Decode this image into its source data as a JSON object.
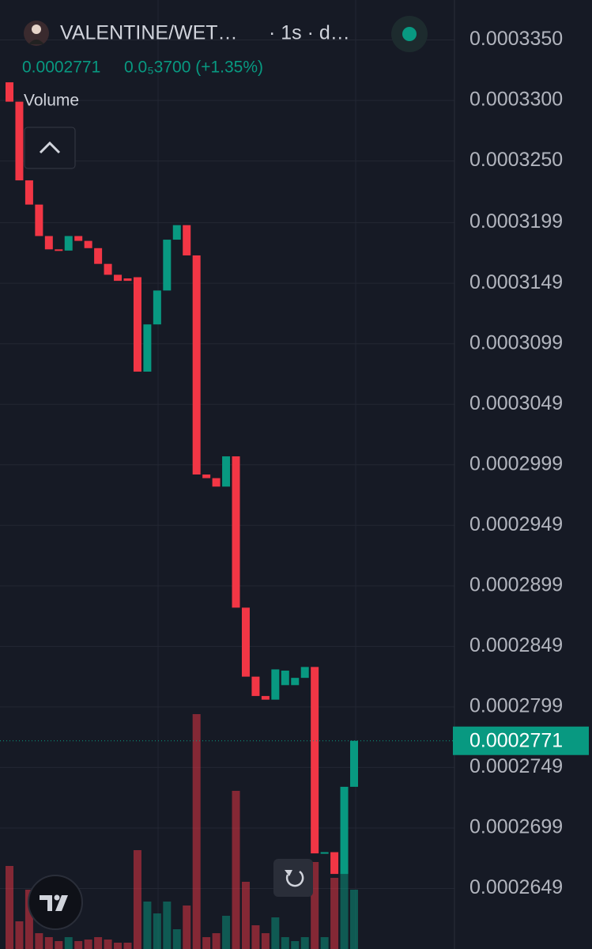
{
  "chart_data": {
    "type": "candlestick",
    "title": "VALENTINE/WET…",
    "subtitle": "· 1s · d…",
    "price": 0.0002771,
    "change": "0.0₅3700 (+1.35%)",
    "volume_label": "Volume",
    "up_color": "#089981",
    "down_color": "#f23645",
    "grid": true,
    "ylim": [
      0.0002599,
      0.0003383
    ],
    "yticks": [
      {
        "value": 0.000335,
        "label": "0.0003350"
      },
      {
        "value": 0.00033,
        "label": "0.0003300"
      },
      {
        "value": 0.000325,
        "label": "0.0003250"
      },
      0.0003199,
      0.0003149,
      0.0003099,
      0.0003049,
      0.0002999,
      0.0002949,
      0.0002899,
      0.0002849,
      0.0002799,
      0.0002749,
      0.0002699,
      0.0002649
    ],
    "open": [
      0.0003315,
      0.0003299,
      0.0003234,
      0.0003214,
      0.0003188,
      0.0003177,
      0.0003176,
      0.0003188,
      0.0003184,
      0.0003178,
      0.0003165,
      0.0003156,
      0.0003153,
      0.0003154,
      0.0003076,
      0.0003115,
      0.0003143,
      0.0003185,
      0.0003197,
      0.0003172,
      0.0002991,
      0.0002988,
      0.0002981,
      0.0003006,
      0.0002881,
      0.0002824,
      0.0002808,
      0.0002805,
      0.0002817,
      0.0002817,
      0.0002823,
      0.0002832,
      0.0002678,
      0.0002679,
      0.0002661,
      0.0002733
    ],
    "close": [
      0.0003299,
      0.0003234,
      0.0003214,
      0.0003188,
      0.0003177,
      0.0003176,
      0.0003188,
      0.0003184,
      0.0003178,
      0.0003165,
      0.0003156,
      0.0003151,
      0.0003151,
      0.0003076,
      0.0003115,
      0.0003143,
      0.0003185,
      0.0003197,
      0.0003172,
      0.0002991,
      0.0002988,
      0.0002981,
      0.0003006,
      0.0002881,
      0.0002824,
      0.0002808,
      0.0002805,
      0.000283,
      0.0002829,
      0.0002823,
      0.0002832,
      0.0002678,
      0.0002679,
      0.0002661,
      0.0002733,
      0.0002771
    ],
    "volume": [
      105,
      35,
      75,
      20,
      15,
      10,
      15,
      10,
      12,
      15,
      12,
      8,
      8,
      125,
      60,
      45,
      60,
      25,
      55,
      297,
      15,
      20,
      42,
      200,
      85,
      30,
      20,
      40,
      15,
      10,
      15,
      110,
      15,
      90,
      107,
      75
    ]
  }
}
